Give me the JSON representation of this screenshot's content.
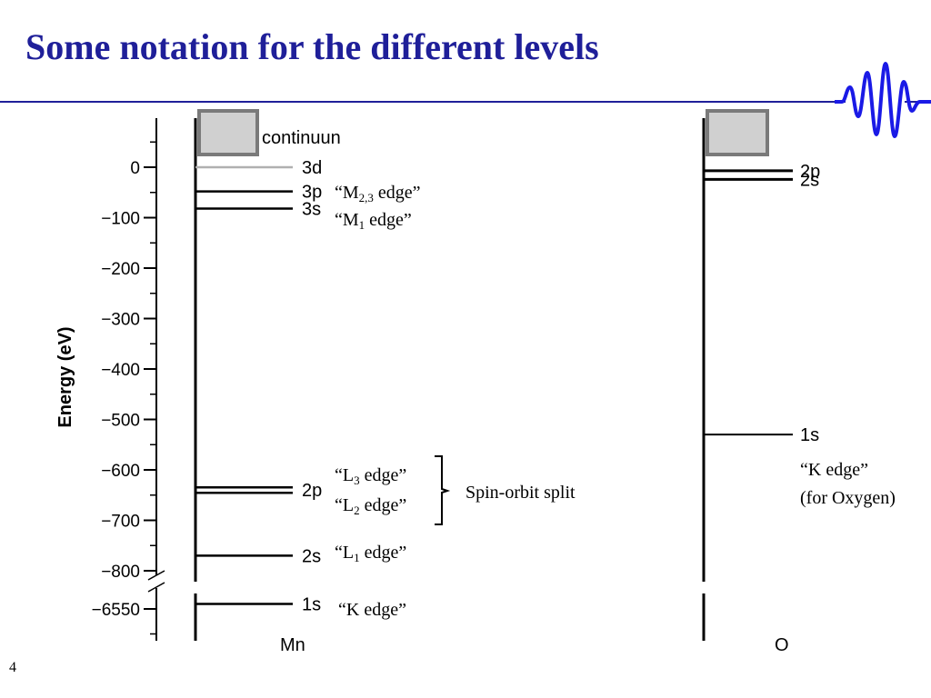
{
  "slide": {
    "title": "Some notation for the different levels",
    "page_number": "4"
  },
  "colors": {
    "title": "#1f1f99",
    "rule": "#1f1f99",
    "logo_wave": "#1a1ae6",
    "continuum_fill": "#d0d0d0",
    "continuum_border": "#7a7a7a",
    "level_3d": "#b0b0b0"
  },
  "diagram": {
    "y_axis": {
      "label": "Energy (eV)",
      "ticks": [
        "0",
        "−100",
        "−200",
        "−300",
        "−400",
        "−500",
        "−600",
        "−700",
        "−800",
        "−6550"
      ]
    },
    "continuum_label": "continuun",
    "mn": {
      "element": "Mn",
      "levels": [
        {
          "name": "3d",
          "energy": 0
        },
        {
          "name": "3p",
          "energy": -48
        },
        {
          "name": "3s",
          "energy": -82
        },
        {
          "name": "2p",
          "energy": -640
        },
        {
          "name": "2s",
          "energy": -770
        },
        {
          "name": "1s",
          "energy": -6540
        }
      ],
      "edges": {
        "m23_prefix": "“M",
        "m23_sub": "2,3",
        "m23_suffix": " edge”",
        "m1_prefix": "“M",
        "m1_sub": "1",
        "m1_suffix": " edge”",
        "l3_prefix": "“L",
        "l3_sub": "3",
        "l3_suffix": " edge”",
        "l2_prefix": "“L",
        "l2_sub": "2",
        "l2_suffix": " edge”",
        "l1_prefix": "“L",
        "l1_sub": "1",
        "l1_suffix": " edge”",
        "k": "“K edge”"
      },
      "spin_orbit": "Spin-orbit split"
    },
    "o": {
      "element": "O",
      "levels": [
        {
          "name": "2p",
          "energy": -7
        },
        {
          "name": "2s",
          "energy": -24
        },
        {
          "name": "1s",
          "energy": -530
        }
      ],
      "k_edge_line1": "“K edge”",
      "k_edge_line2": "(for Oxygen)"
    }
  }
}
